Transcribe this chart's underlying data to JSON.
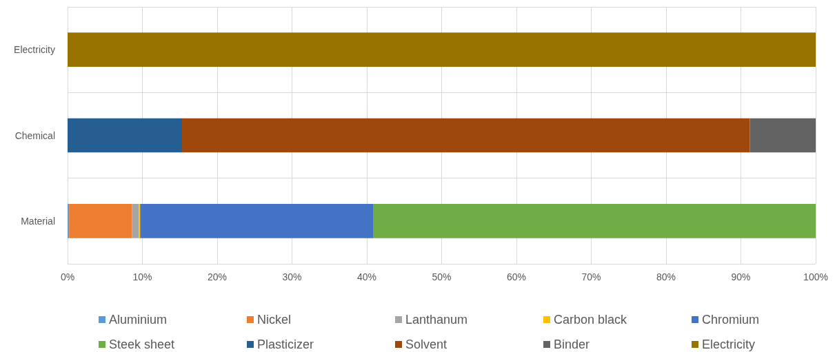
{
  "chart_data": {
    "type": "bar",
    "orientation": "horizontal",
    "stacked": true,
    "categories": [
      "Electricity",
      "Chemical",
      "Material"
    ],
    "series": [
      {
        "name": "Aluminium",
        "color": "#5b9bd5",
        "values": [
          null,
          null,
          0.2
        ]
      },
      {
        "name": "Nickel",
        "color": "#ed7d31",
        "values": [
          null,
          null,
          8.4
        ]
      },
      {
        "name": "Lanthanum",
        "color": "#a5a5a5",
        "values": [
          null,
          null,
          0.9
        ]
      },
      {
        "name": "Carbon black",
        "color": "#ffc000",
        "values": [
          null,
          null,
          0.2
        ]
      },
      {
        "name": "Chromium",
        "color": "#4472c4",
        "values": [
          null,
          null,
          31.2
        ]
      },
      {
        "name": "Steek sheet",
        "color": "#70ad47",
        "values": [
          null,
          null,
          59.1
        ]
      },
      {
        "name": "Plasticizer",
        "color": "#255e91",
        "values": [
          null,
          15.3,
          null
        ]
      },
      {
        "name": "Solvent",
        "color": "#9e480e",
        "values": [
          null,
          75.9,
          null
        ]
      },
      {
        "name": "Binder",
        "color": "#636363",
        "values": [
          null,
          8.8,
          null
        ]
      },
      {
        "name": "Electricity",
        "color": "#997300",
        "values": [
          100,
          null,
          null
        ]
      }
    ],
    "xlim": [
      0,
      100
    ],
    "xticks": [
      {
        "value": 0,
        "label": "0%"
      },
      {
        "value": 10,
        "label": "10%"
      },
      {
        "value": 20,
        "label": "20%"
      },
      {
        "value": 30,
        "label": "30%"
      },
      {
        "value": 40,
        "label": "40%"
      },
      {
        "value": 50,
        "label": "50%"
      },
      {
        "value": 60,
        "label": "60%"
      },
      {
        "value": 70,
        "label": "70%"
      },
      {
        "value": 80,
        "label": "80%"
      },
      {
        "value": 90,
        "label": "90%"
      },
      {
        "value": 100,
        "label": "100%"
      }
    ],
    "grid": true,
    "legend": "bottom"
  }
}
